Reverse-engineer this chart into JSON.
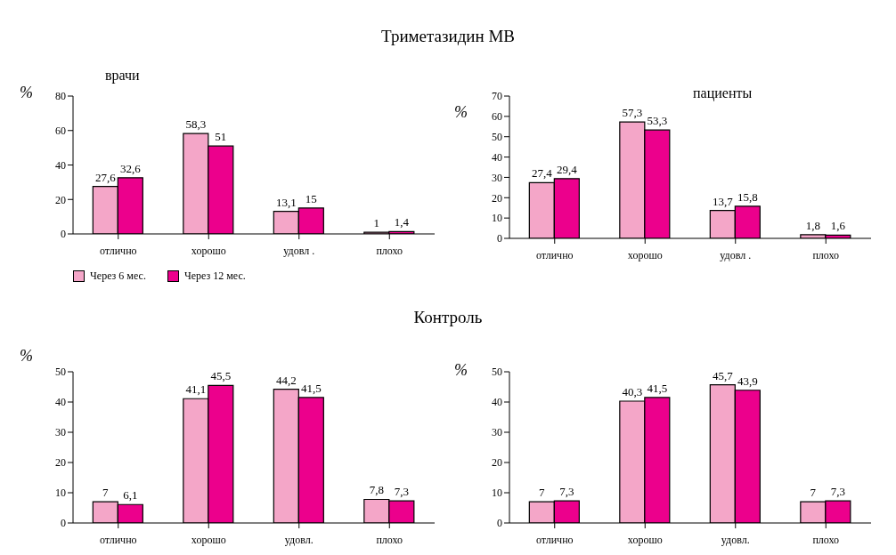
{
  "chart_data": [
    {
      "type": "bar",
      "title": "Триметазидин МВ",
      "subtitle": "врачи",
      "ylabel": "%",
      "categories": [
        "отлично",
        "хорошо",
        "удовл .",
        "плохо"
      ],
      "series": [
        {
          "name": "Через  6 мес.",
          "color": "#f4a6c8",
          "values": [
            27.6,
            58.3,
            13.1,
            1
          ],
          "value_labels": [
            "27,6",
            "58,3",
            "13,1",
            "1"
          ]
        },
        {
          "name": "Через  12 мес.",
          "color": "#ec008c",
          "values": [
            32.6,
            51,
            15,
            1.4
          ],
          "value_labels": [
            "32,6",
            "51",
            "15",
            "1,4"
          ]
        }
      ],
      "ylim": [
        0,
        80
      ],
      "yticks": [
        0,
        20,
        40,
        60,
        80
      ],
      "legend": "bottom"
    },
    {
      "type": "bar",
      "subtitle": "пациенты",
      "ylabel": "%",
      "categories": [
        "отлично",
        "хорошо",
        "удовл .",
        "плохо"
      ],
      "series": [
        {
          "color": "#f4a6c8",
          "values": [
            27.4,
            57.3,
            13.7,
            1.8
          ],
          "value_labels": [
            "27,4",
            "57,3",
            "13,7",
            "1,8"
          ]
        },
        {
          "color": "#ec008c",
          "values": [
            29.4,
            53.3,
            15.8,
            1.6
          ],
          "value_labels": [
            "29,4",
            "53,3",
            "15,8",
            "1,6"
          ]
        }
      ],
      "ylim": [
        0,
        70
      ],
      "yticks": [
        0,
        10,
        20,
        30,
        40,
        50,
        60,
        70
      ]
    },
    {
      "type": "bar",
      "title": "Контроль",
      "ylabel": "%",
      "categories": [
        "отлично",
        "хорошо",
        "удовл.",
        "плохо"
      ],
      "series": [
        {
          "color": "#f4a6c8",
          "values": [
            7,
            41.1,
            44.2,
            7.8
          ],
          "value_labels": [
            "7",
            "41,1",
            "44,2",
            "7,8"
          ]
        },
        {
          "color": "#ec008c",
          "values": [
            6.1,
            45.5,
            41.5,
            7.3
          ],
          "value_labels": [
            "6,1",
            "45,5",
            "41,5",
            "7,3"
          ]
        }
      ],
      "ylim": [
        0,
        50
      ],
      "yticks": [
        0,
        10,
        20,
        30,
        40,
        50
      ]
    },
    {
      "type": "bar",
      "ylabel": "%",
      "categories": [
        "отлично",
        "хорошо",
        "удовл.",
        "плохо"
      ],
      "series": [
        {
          "color": "#f4a6c8",
          "values": [
            7,
            40.3,
            45.7,
            7
          ],
          "value_labels": [
            "7",
            "40,3",
            "45,7",
            "7"
          ]
        },
        {
          "color": "#ec008c",
          "values": [
            7.3,
            41.5,
            43.9,
            7.3
          ],
          "value_labels": [
            "7,3",
            "41,5",
            "43,9",
            "7,3"
          ]
        }
      ],
      "ylim": [
        0,
        50
      ],
      "yticks": [
        0,
        10,
        20,
        30,
        40,
        50
      ]
    }
  ]
}
